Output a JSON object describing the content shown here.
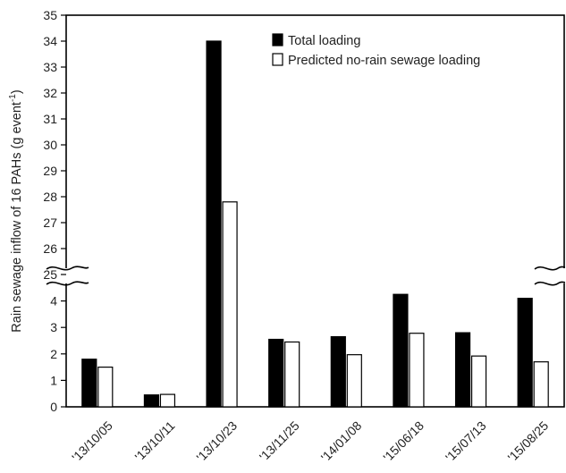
{
  "chart_data": {
    "type": "bar",
    "title": "",
    "ylabel": "Rain sewage inflow of 16 PAHs (g event",
    "ylabel_sup": "-1",
    "ylabel_close": ")",
    "xlabel": "",
    "categories": [
      "'13/10/05",
      "'13/10/11",
      "'13/10/23",
      "'13/11/25",
      "'14/01/08",
      "'15/06/18",
      "'15/07/13",
      "'15/08/25"
    ],
    "series": [
      {
        "name": "Total loading",
        "color": "#000000",
        "values": [
          1.8,
          0.45,
          34.0,
          2.55,
          2.65,
          4.25,
          2.8,
          4.1
        ]
      },
      {
        "name": "Predicted no-rain sewage loading",
        "color": "#ffffff",
        "values": [
          1.5,
          0.47,
          27.8,
          2.45,
          1.97,
          2.78,
          1.92,
          1.7
        ]
      }
    ],
    "y_axis_break": {
      "lower_range": [
        0,
        5
      ],
      "upper_range": [
        25,
        35
      ]
    },
    "lower_ticks": [
      "0",
      "1",
      "2",
      "3",
      "4"
    ],
    "upper_ticks": [
      "25",
      "26",
      "27",
      "28",
      "29",
      "30",
      "31",
      "32",
      "33",
      "34",
      "35"
    ],
    "legend_position": "top-right",
    "grid": false
  }
}
